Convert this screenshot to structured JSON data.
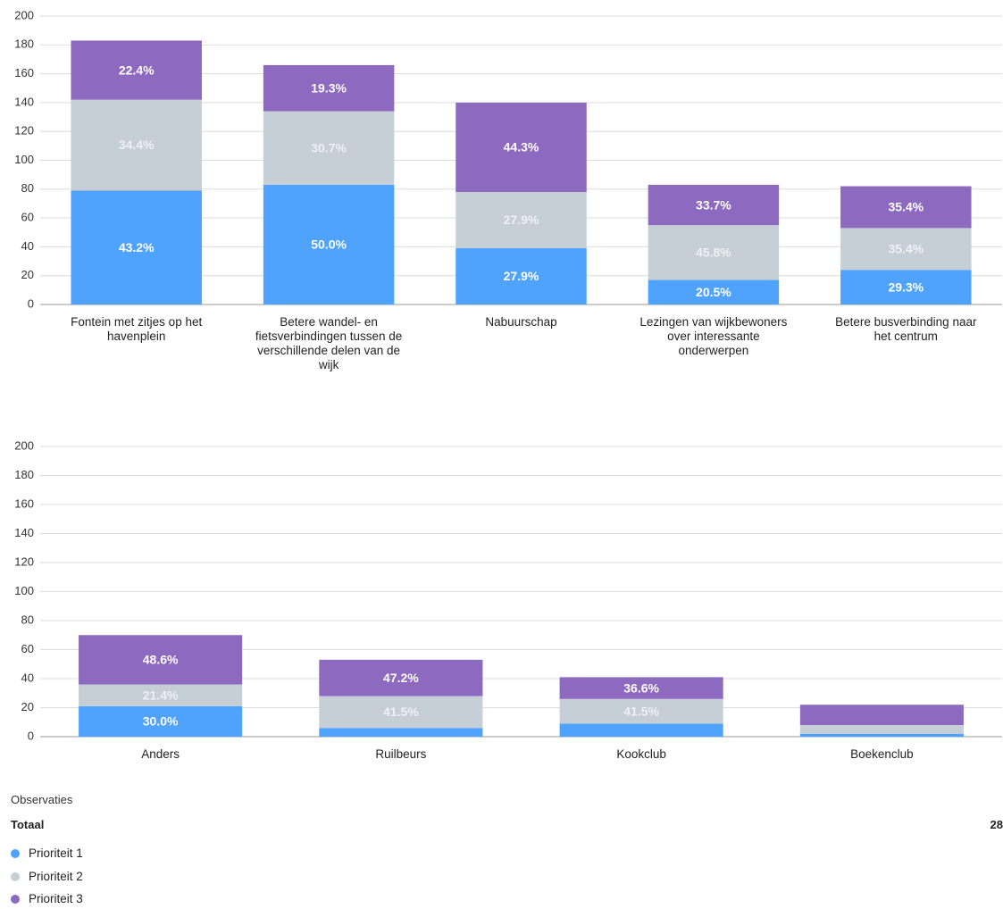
{
  "chart_data": [
    {
      "type": "stacked_bar",
      "categories": [
        "Fontein met zitjes op het havenplein",
        "Betere wandel- en fietsverbindingen tussen de verschillende delen van de wijk",
        "Nabuurschap",
        "Lezingen van wijkbewoners over interessante onderwerpen",
        "Betere busverbinding naar het centrum"
      ],
      "series": [
        {
          "values": [
            79,
            83,
            39,
            17,
            24
          ],
          "percent_labels": [
            "43.2%",
            "50.0%",
            "27.9%",
            "20.5%",
            "29.3%"
          ]
        },
        {
          "values": [
            63,
            51,
            39,
            38,
            29
          ],
          "percent_labels": [
            "34.4%",
            "30.7%",
            "27.9%",
            "45.8%",
            "35.4%"
          ]
        },
        {
          "values": [
            41,
            32,
            62,
            28,
            29
          ],
          "percent_labels": [
            "22.4%",
            "19.3%",
            "44.3%",
            "33.7%",
            "35.4%"
          ]
        }
      ],
      "ylim": [
        0,
        200
      ],
      "yticks": [
        0,
        20,
        40,
        60,
        80,
        100,
        120,
        140,
        160,
        180,
        200
      ],
      "grid": true
    },
    {
      "type": "stacked_bar",
      "categories": [
        "Anders",
        "Ruilbeurs",
        "Kookclub",
        "Boekenclub"
      ],
      "series": [
        {
          "values": [
            21,
            6,
            9,
            2
          ],
          "percent_labels": [
            "30.0%",
            null,
            null,
            null
          ]
        },
        {
          "values": [
            15,
            22,
            17,
            6
          ],
          "percent_labels": [
            "21.4%",
            "41.5%",
            "41.5%",
            null
          ]
        },
        {
          "values": [
            34,
            25,
            15,
            14
          ],
          "percent_labels": [
            "48.6%",
            "47.2%",
            "36.6%",
            null
          ]
        }
      ],
      "ylim": [
        0,
        200
      ],
      "yticks": [
        0,
        20,
        40,
        60,
        80,
        100,
        120,
        140,
        160,
        180,
        200
      ],
      "grid": true
    }
  ],
  "legend": [
    {
      "name": "Prioriteit 1",
      "color": "#4fa3fd"
    },
    {
      "name": "Prioriteit 2",
      "color": "#c6ced6"
    },
    {
      "name": "Prioriteit 3",
      "color": "#8d69c0"
    }
  ],
  "observations": {
    "title": "Observaties",
    "total_label": "Totaal",
    "total": 28
  }
}
